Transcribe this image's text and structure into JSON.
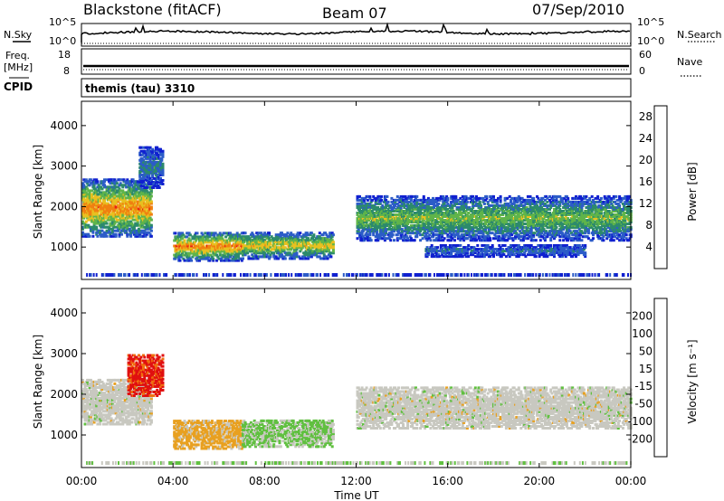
{
  "header": {
    "station": "Blackstone (fitACF)",
    "beam": "Beam 07",
    "date": "07/Sep/2010"
  },
  "labels": {
    "nsky": "N.Sky",
    "nsearch": "N.Search",
    "freq": "Freq.",
    "freq_unit": "[MHz]",
    "nave": "Nave",
    "cpid_label": "CPID",
    "cpid_value": "themis (tau) 3310",
    "slant_range": "Slant Range [km]",
    "time_axis": "Time UT",
    "power_label": "Power [dB]",
    "velocity_label": "Velocity [m s⁻¹]"
  },
  "noise_panel": {
    "left_ticks": [
      "10^5",
      "10^0"
    ],
    "right_ticks": [
      "10^5",
      "10^0"
    ]
  },
  "freq_panel": {
    "left_ticks": [
      "18",
      "8"
    ],
    "right_ticks": [
      "60",
      "0"
    ]
  },
  "chart_data": [
    {
      "type": "heatmap",
      "title": "",
      "xlabel": "Time UT",
      "ylabel": "Slant Range [km]",
      "x_ticks": [
        "00:00",
        "04:00",
        "08:00",
        "12:00",
        "16:00",
        "20:00",
        "00:00"
      ],
      "xlim": [
        0,
        24
      ],
      "y_ticks": [
        1000,
        2000,
        3000,
        4000
      ],
      "ylim": [
        200,
        4600
      ],
      "colorbar": {
        "label": "Power [dB]",
        "ticks": [
          4,
          8,
          12,
          16,
          20,
          24,
          28
        ],
        "range": [
          0,
          30
        ],
        "colors": [
          "#1020d0",
          "#2c5cc8",
          "#2c8a6c",
          "#5fb44a",
          "#e8c020",
          "#f08010",
          "#e82010"
        ]
      },
      "regions": [
        {
          "t0": 0.0,
          "t1": 3.0,
          "r0": 1300,
          "r1": 2700,
          "peak": 24
        },
        {
          "t0": 2.5,
          "t1": 3.5,
          "r0": 2500,
          "r1": 3500,
          "peak": 10
        },
        {
          "t0": 4.0,
          "t1": 7.0,
          "r0": 700,
          "r1": 1400,
          "peak": 24
        },
        {
          "t0": 7.0,
          "t1": 11.0,
          "r0": 750,
          "r1": 1400,
          "peak": 20
        },
        {
          "t0": 12.0,
          "t1": 24.0,
          "r0": 1200,
          "r1": 2300,
          "peak": 16
        },
        {
          "t0": 15.0,
          "t1": 22.0,
          "r0": 800,
          "r1": 1100,
          "peak": 8
        }
      ]
    },
    {
      "type": "heatmap",
      "title": "",
      "xlabel": "Time UT",
      "ylabel": "Slant Range [km]",
      "x_ticks": [
        "00:00",
        "04:00",
        "08:00",
        "12:00",
        "16:00",
        "20:00",
        "00:00"
      ],
      "xlim": [
        0,
        24
      ],
      "y_ticks": [
        1000,
        2000,
        3000,
        4000
      ],
      "ylim": [
        200,
        4600
      ],
      "colorbar": {
        "label": "Velocity [m s⁻¹]",
        "ticks": [
          200,
          100,
          50,
          15,
          -15,
          -50,
          -100,
          -200
        ],
        "colors": [
          "#1030c0",
          "#2060b0",
          "#2c8a6c",
          "#60c040",
          "#c8c8c0",
          "#e8a020",
          "#f07010",
          "#e03010",
          "#e01010"
        ]
      },
      "regions": [
        {
          "t0": 0.0,
          "t1": 3.0,
          "r0": 1300,
          "r1": 2400,
          "velocity": 0
        },
        {
          "t0": 2.0,
          "t1": 3.5,
          "r0": 2000,
          "r1": 3000,
          "velocity": -200
        },
        {
          "t0": 4.0,
          "t1": 7.0,
          "r0": 700,
          "r1": 1400,
          "velocity": -50
        },
        {
          "t0": 7.0,
          "t1": 11.0,
          "r0": 750,
          "r1": 1400,
          "velocity": 30
        },
        {
          "t0": 12.0,
          "t1": 24.0,
          "r0": 1200,
          "r1": 2200,
          "velocity": 0
        }
      ]
    }
  ]
}
